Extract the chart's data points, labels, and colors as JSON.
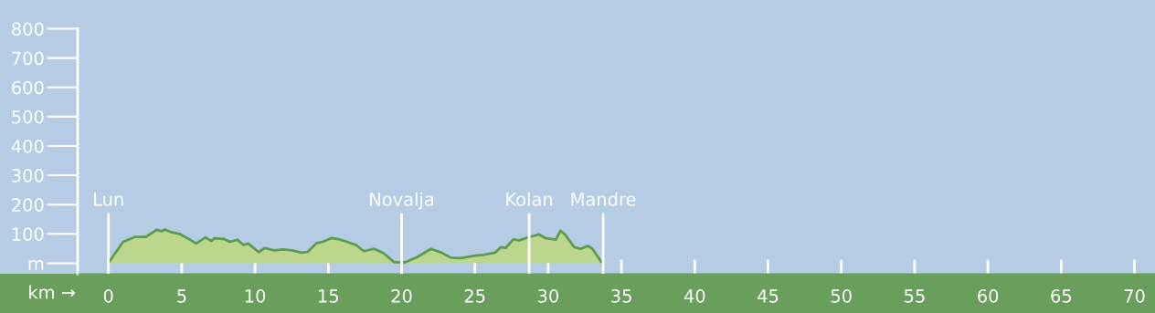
{
  "chart_data": {
    "type": "area",
    "xlabel": "km →",
    "x": [
      0.06,
      1.0,
      1.83,
      2.56,
      3.29,
      3.6,
      3.85,
      4.22,
      4.85,
      5.47,
      5.99,
      6.61,
      7.03,
      7.24,
      7.86,
      8.28,
      8.8,
      9.21,
      9.53,
      10.25,
      10.67,
      11.29,
      11.92,
      12.54,
      13.16,
      13.58,
      14.21,
      14.62,
      15.24,
      15.77,
      16.28,
      16.9,
      17.42,
      18.15,
      18.78,
      19.5,
      20.23,
      21.06,
      22.0,
      22.73,
      23.35,
      23.97,
      25.02,
      25.53,
      26.37,
      26.78,
      27.09,
      27.62,
      28.03,
      28.76,
      29.38,
      29.8,
      30.52,
      30.84,
      31.15,
      31.77,
      32.19,
      32.71,
      33.02,
      33.65
    ],
    "series": [
      {
        "color": "#5e9a50",
        "values": [
          5,
          73,
          90,
          90,
          114,
          109,
          115,
          107,
          100,
          83,
          67,
          88,
          76,
          85,
          83,
          73,
          80,
          62,
          67,
          38,
          52,
          44,
          47,
          44,
          36,
          38,
          69,
          73,
          86,
          81,
          73,
          62,
          41,
          49,
          34,
          3,
          3,
          21,
          49,
          36,
          19,
          17,
          26,
          28,
          36,
          55,
          52,
          81,
          78,
          90,
          98,
          86,
          80,
          111,
          98,
          55,
          49,
          59,
          49,
          3
        ]
      }
    ],
    "xlim": [
      -2.1,
      71.4
    ],
    "ylim": [
      -36,
      898
    ],
    "xticks": [
      0,
      5,
      10,
      15,
      20,
      25,
      30,
      35,
      40,
      45,
      50,
      55,
      60,
      65,
      70
    ],
    "yticks": [
      {
        "value": 0,
        "label": "m"
      },
      100,
      200,
      300,
      400,
      500,
      600,
      700,
      800
    ],
    "ref_lines": [
      {
        "axis": "x",
        "value": 0,
        "label": "Lun",
        "color": "#ffffff"
      },
      {
        "axis": "x",
        "value": 20.0,
        "label": "Novalja",
        "color": "#ffffff"
      },
      {
        "axis": "x",
        "value": 28.7,
        "label": "Kolan",
        "color": "#ffffff"
      },
      {
        "axis": "x",
        "value": 33.75,
        "label": "Mandre",
        "color": "#ffffff"
      }
    ]
  }
}
